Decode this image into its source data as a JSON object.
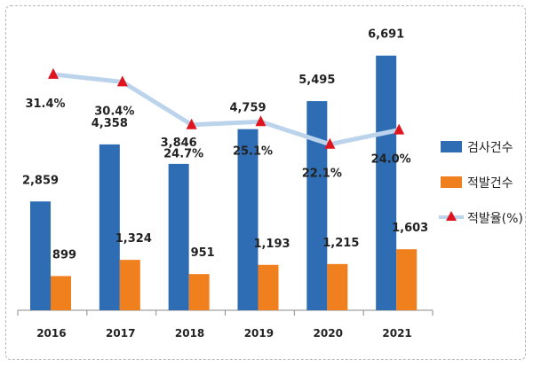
{
  "chart_data": {
    "type": "bar",
    "categories": [
      "2016",
      "2017",
      "2018",
      "2019",
      "2020",
      "2021"
    ],
    "series": [
      {
        "name": "검사건수",
        "kind": "bar",
        "color": "#2e6db4",
        "values": [
          2859,
          4358,
          3846,
          4759,
          5495,
          6691
        ],
        "labels": [
          "2,859",
          "4,358",
          "3,846",
          "4,759",
          "5,495",
          "6,691"
        ]
      },
      {
        "name": "적발건수",
        "kind": "bar",
        "color": "#f07f1e",
        "values": [
          899,
          1324,
          951,
          1193,
          1215,
          1603
        ],
        "labels": [
          "899",
          "1,324",
          "951",
          "1,193",
          "1,215",
          "1,603"
        ]
      },
      {
        "name": "적발율(%)",
        "kind": "line",
        "color": "#bcd3ec",
        "marker_color": "#e0141e",
        "values": [
          31.4,
          30.4,
          24.7,
          25.1,
          22.1,
          24.0
        ],
        "labels": [
          "31.4%",
          "30.4%",
          "24.7%",
          "25.1%",
          "22.1%",
          "24.0%"
        ]
      }
    ],
    "ylim": [
      0,
      7500
    ],
    "rate_ylim": [
      0,
      38
    ],
    "legend_position": "right",
    "title": "",
    "xlabel": "",
    "ylabel": ""
  }
}
